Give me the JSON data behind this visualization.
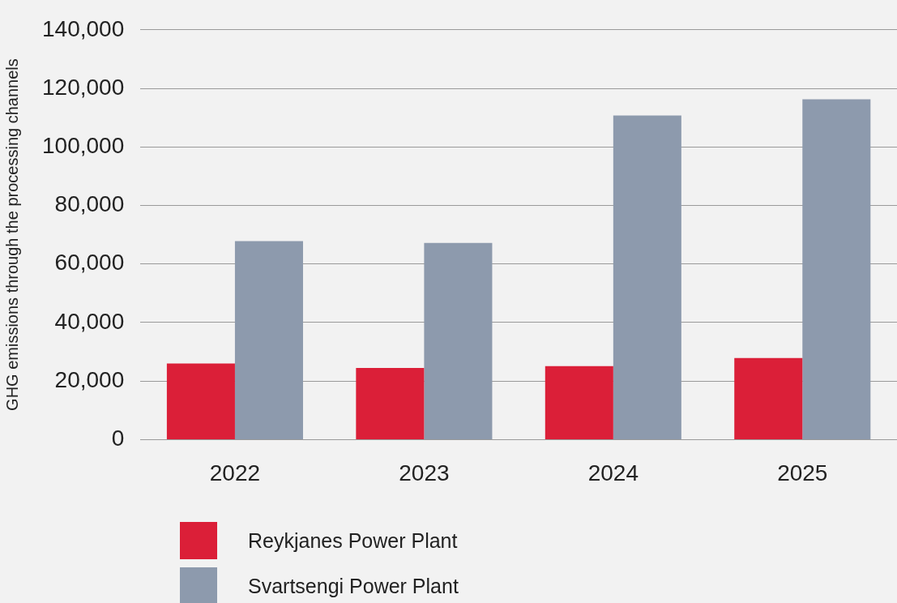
{
  "chart_data": {
    "type": "bar",
    "ylabel": "GHG emissions through the processing channels",
    "categories": [
      "2022",
      "2023",
      "2024",
      "2025"
    ],
    "series": [
      {
        "name": "Reykjanes Power Plant",
        "color": "#db1f38",
        "values": [
          26000,
          24500,
          25100,
          27900
        ]
      },
      {
        "name": "Svartsengi Power Plant",
        "color": "#8d9aad",
        "values": [
          67800,
          67200,
          110700,
          116300
        ]
      }
    ],
    "ylim": [
      0,
      140000
    ],
    "yticks": [
      0,
      {
        "value": 20000,
        "label": "20,000"
      },
      {
        "value": 40000,
        "label": "40,000"
      },
      {
        "value": 60000,
        "label": "60,000"
      },
      {
        "value": 80000,
        "label": "80,000"
      },
      {
        "value": 100000,
        "label": "100,000"
      },
      {
        "value": 120000,
        "label": "120,000"
      },
      {
        "value": 140000,
        "label": "140,000"
      }
    ],
    "grid": "y",
    "legend": "bottom left"
  }
}
